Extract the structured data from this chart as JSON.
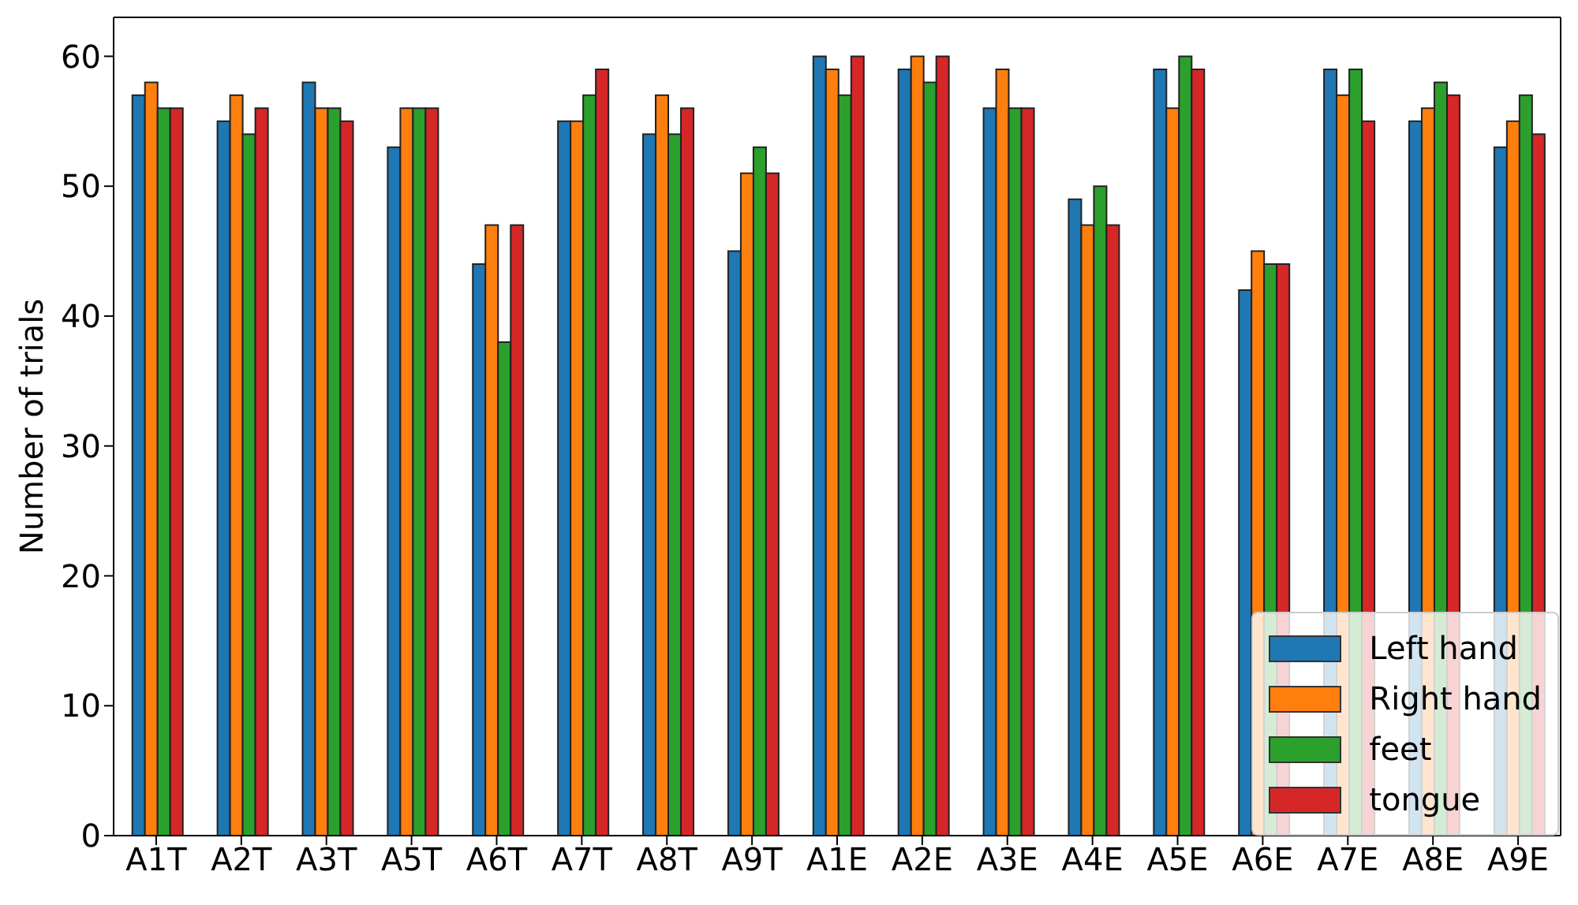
{
  "chart_data": {
    "type": "bar",
    "ylabel": "Number of trials",
    "categories": [
      "A1T",
      "A2T",
      "A3T",
      "A5T",
      "A6T",
      "A7T",
      "A8T",
      "A9T",
      "A1E",
      "A2E",
      "A3E",
      "A4E",
      "A5E",
      "A6E",
      "A7E",
      "A8E",
      "A9E"
    ],
    "series": [
      {
        "name": "Left hand",
        "color": "#1f77b4",
        "values": [
          57,
          55,
          58,
          53,
          44,
          55,
          54,
          45,
          60,
          59,
          56,
          49,
          59,
          42,
          59,
          55,
          53
        ]
      },
      {
        "name": "Right hand",
        "color": "#ff7f0e",
        "values": [
          58,
          57,
          56,
          56,
          47,
          55,
          57,
          51,
          59,
          60,
          59,
          47,
          56,
          45,
          57,
          56,
          55
        ]
      },
      {
        "name": "feet",
        "color": "#2ca02c",
        "values": [
          56,
          54,
          56,
          56,
          38,
          57,
          54,
          53,
          57,
          58,
          56,
          50,
          60,
          44,
          59,
          58,
          57
        ]
      },
      {
        "name": "tongue",
        "color": "#d62728",
        "values": [
          56,
          56,
          55,
          56,
          47,
          59,
          56,
          51,
          60,
          60,
          56,
          47,
          59,
          44,
          55,
          57,
          54
        ]
      }
    ],
    "ylim": [
      0,
      63
    ],
    "yticks": [
      0,
      10,
      20,
      30,
      40,
      50,
      60
    ],
    "grid": false,
    "legend": "bottom right"
  }
}
